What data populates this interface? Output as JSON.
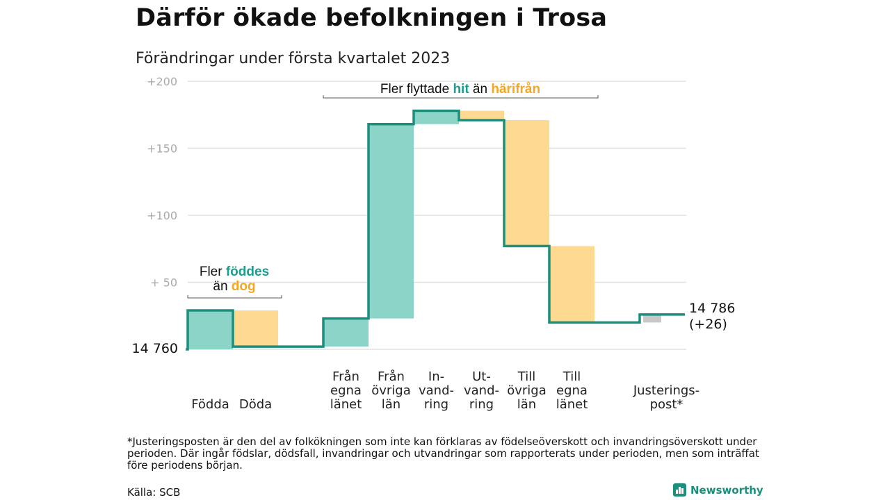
{
  "title": "Därför ökade befolkningen i Trosa",
  "subtitle": "Förändringar under första kvartalet 2023",
  "footnote": "*Justeringsposten är den del av folkökningen som inte kan förklaras av födelseöverskott och invandringsöverskott under perioden. Där ingår födslar, dödsfall, invandringar och utvandringar som rapporterats under perioden, men som inträffat före periodens början.",
  "source": "Källa: SCB",
  "brand": "Newsworthy",
  "colors": {
    "inflow": "#8dd4c8",
    "outflow": "#fdd992",
    "adjustment": "#c8c8c8",
    "line": "#1a8f7d",
    "hit": "#1a9e8e",
    "harifran": "#f5a623",
    "grid": "#e0e0e0",
    "tick": "#aaaaaa"
  },
  "chart_data": {
    "type": "waterfall",
    "start_label": "14 760",
    "end_label": [
      "14 786",
      "(+26)"
    ],
    "yticks": [
      "+200",
      "+150",
      "+100",
      "+ 50"
    ],
    "ylim": [
      0,
      200
    ],
    "categories": [
      [
        "Födda"
      ],
      [
        "Döda"
      ],
      [],
      [
        "Från",
        "egna",
        "länet"
      ],
      [
        "Från",
        "övriga",
        "län"
      ],
      [
        "In-",
        "vand-",
        "ring"
      ],
      [
        "Ut-",
        "vand-",
        "ring"
      ],
      [
        "Till",
        "övriga",
        "län"
      ],
      [
        "Till",
        "egna",
        "länet"
      ],
      [],
      [
        "Justerings-",
        "post*"
      ]
    ],
    "steps": [
      {
        "name": "Födda",
        "type": "inflow",
        "from": 0,
        "to": 29
      },
      {
        "name": "Döda",
        "type": "outflow",
        "from": 29,
        "to": 2
      },
      {
        "name": "",
        "type": "none",
        "from": 2,
        "to": 2
      },
      {
        "name": "Från egna länet",
        "type": "inflow",
        "from": 2,
        "to": 23
      },
      {
        "name": "Från övriga län",
        "type": "inflow",
        "from": 23,
        "to": 168
      },
      {
        "name": "Invandring",
        "type": "inflow",
        "from": 168,
        "to": 178
      },
      {
        "name": "Utvandring",
        "type": "outflow",
        "from": 178,
        "to": 171
      },
      {
        "name": "Till övriga län",
        "type": "outflow",
        "from": 171,
        "to": 77
      },
      {
        "name": "Till egna länet",
        "type": "outflow",
        "from": 77,
        "to": 20
      },
      {
        "name": "",
        "type": "none",
        "from": 20,
        "to": 20
      },
      {
        "name": "Justeringspost",
        "type": "adjustment",
        "from": 20,
        "to": 26
      }
    ],
    "annotations": {
      "births": {
        "line1_prefix": "Fler ",
        "line1_highlight": "föddes",
        "line2_prefix": "än ",
        "line2_highlight": "dog"
      },
      "migration": {
        "prefix": "Fler flyttade ",
        "highlight1": "hit",
        "middle": " än ",
        "highlight2": "härifrån"
      }
    }
  }
}
